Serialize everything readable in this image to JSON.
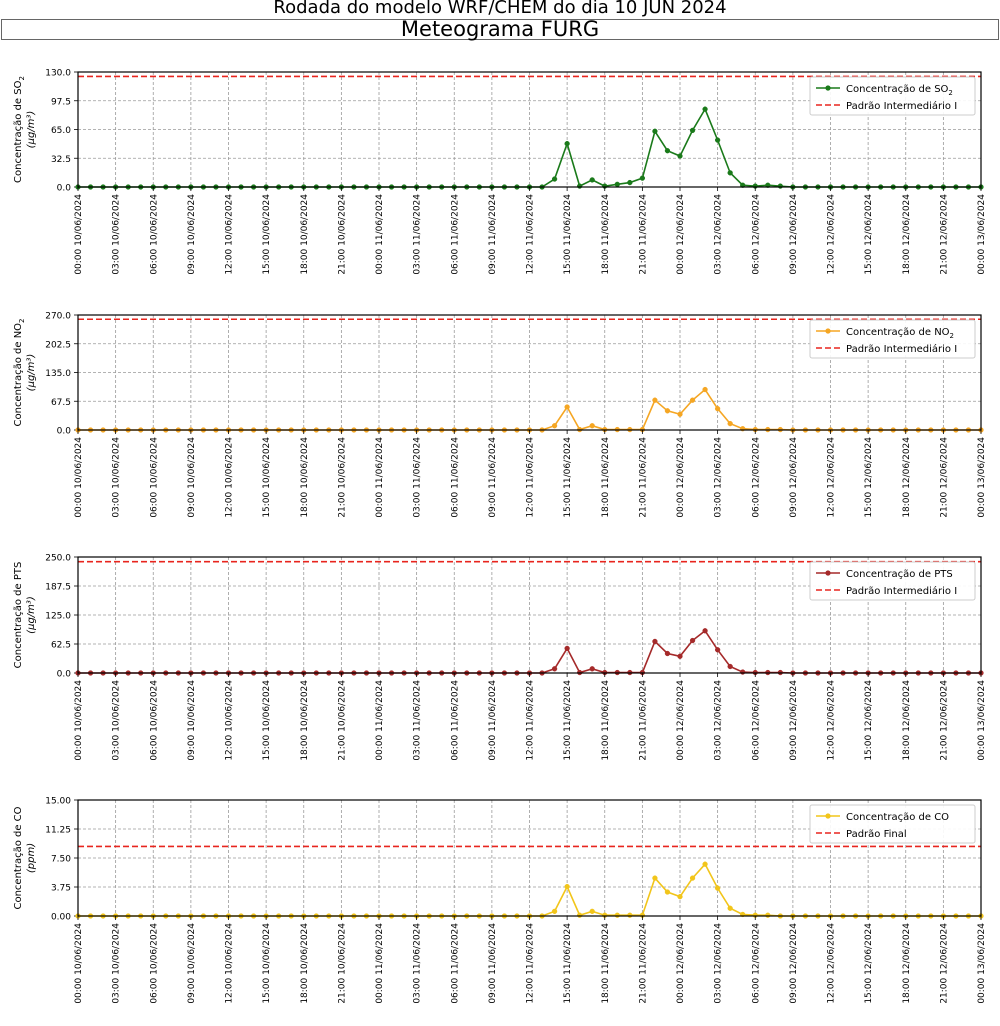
{
  "header": {
    "title": "Rodada do modelo WRF/CHEM do dia 10 JUN 2024",
    "subtitle": "Meteograma FURG"
  },
  "x_tick_labels": [
    "00:00 10/06/2024",
    "03:00 10/06/2024",
    "06:00 10/06/2024",
    "09:00 10/06/2024",
    "12:00 10/06/2024",
    "15:00 10/06/2024",
    "18:00 10/06/2024",
    "21:00 10/06/2024",
    "00:00 11/06/2024",
    "03:00 11/06/2024",
    "06:00 11/06/2024",
    "09:00 11/06/2024",
    "12:00 11/06/2024",
    "15:00 11/06/2024",
    "18:00 11/06/2024",
    "21:00 11/06/2024",
    "00:00 12/06/2024",
    "03:00 12/06/2024",
    "06:00 12/06/2024",
    "09:00 12/06/2024",
    "12:00 12/06/2024",
    "15:00 12/06/2024",
    "18:00 12/06/2024",
    "21:00 12/06/2024",
    "00:00 13/06/2024"
  ],
  "chart_data": [
    {
      "type": "line",
      "color": "#1a7a1a",
      "ylabel_line1": "Concentração de SO",
      "ylabel_sub": "2",
      "ylabel_line2": "(μg/m³)",
      "ylim": [
        0,
        130
      ],
      "yticks": [
        "0.0",
        "32.5",
        "65.0",
        "97.5",
        "130.0"
      ],
      "limit": 125,
      "grid": true,
      "legend_placement": "top-right",
      "series": [
        {
          "label": "Concentração de SO",
          "label_sub": "2",
          "kind": "line-marker",
          "values": [
            0,
            0,
            0,
            0,
            0,
            0,
            0,
            0,
            0,
            0,
            0,
            0,
            0,
            0,
            0,
            0,
            0,
            0,
            0,
            0,
            0,
            0,
            0,
            0,
            0,
            0,
            0,
            0,
            0,
            0,
            0,
            0,
            0,
            0,
            0,
            0,
            0,
            0,
            9,
            49,
            1,
            8,
            1,
            3,
            5,
            10,
            63,
            41,
            35,
            64,
            88,
            53,
            16,
            2,
            1,
            2,
            1,
            0,
            0,
            0,
            0,
            0,
            0,
            0,
            0,
            0,
            0,
            0,
            0,
            0,
            0,
            0,
            0
          ]
        },
        {
          "label": "Padrão Intermediário I",
          "kind": "dashed"
        }
      ]
    },
    {
      "type": "line",
      "color": "#f5a623",
      "ylabel_line1": "Concentração de NO",
      "ylabel_sub": "2",
      "ylabel_line2": "(μg/m³)",
      "ylim": [
        0,
        270
      ],
      "yticks": [
        "0.0",
        "67.5",
        "135.0",
        "202.5",
        "270.0"
      ],
      "limit": 260,
      "grid": true,
      "legend_placement": "top-right",
      "series": [
        {
          "label": "Concentração de NO",
          "label_sub": "2",
          "kind": "line-marker",
          "values": [
            0,
            0,
            0,
            0,
            0,
            0,
            0,
            0,
            0,
            0,
            0,
            0,
            0,
            0,
            0,
            0,
            0,
            0,
            0,
            0,
            0,
            0,
            0,
            0,
            0,
            0,
            0,
            0,
            0,
            0,
            0,
            0,
            0,
            0,
            0,
            0,
            0,
            0,
            10,
            54,
            1,
            10,
            1,
            1,
            1,
            1,
            70,
            45,
            37,
            70,
            95,
            50,
            15,
            3,
            1,
            1,
            1,
            0,
            0,
            0,
            0,
            0,
            0,
            0,
            0,
            0,
            0,
            0,
            0,
            0,
            0,
            0,
            0
          ]
        },
        {
          "label": "Padrão Intermediário I",
          "kind": "dashed"
        }
      ]
    },
    {
      "type": "line",
      "color": "#a52a2a",
      "ylabel_line1": "Concentração de PTS",
      "ylabel_sub": "",
      "ylabel_line2": "(μg/m³)",
      "ylim": [
        0,
        250
      ],
      "yticks": [
        "0.0",
        "62.5",
        "125.0",
        "187.5",
        "250.0"
      ],
      "limit": 240,
      "grid": true,
      "legend_placement": "top-right",
      "series": [
        {
          "label": "Concentração de PTS",
          "label_sub": "",
          "kind": "line-marker",
          "values": [
            0,
            0,
            0,
            0,
            0,
            0,
            0,
            0,
            0,
            0,
            0,
            0,
            0,
            0,
            0,
            0,
            0,
            0,
            0,
            0,
            0,
            0,
            0,
            0,
            0,
            0,
            0,
            0,
            0,
            0,
            0,
            0,
            0,
            0,
            0,
            0,
            0,
            0,
            9,
            53,
            1,
            9,
            1,
            1,
            1,
            1,
            68,
            42,
            36,
            70,
            91,
            50,
            14,
            2,
            1,
            1,
            1,
            0,
            0,
            0,
            0,
            0,
            0,
            0,
            0,
            0,
            0,
            0,
            0,
            0,
            0,
            0,
            0
          ]
        },
        {
          "label": "Padrão Intermediário I",
          "kind": "dashed"
        }
      ]
    },
    {
      "type": "line",
      "color": "#f2c51a",
      "ylabel_line1": "Concentração de CO",
      "ylabel_sub": "",
      "ylabel_line2": "(ppm)",
      "ylim": [
        0,
        15
      ],
      "yticks": [
        "0.00",
        "3.75",
        "7.50",
        "11.25",
        "15.00"
      ],
      "limit": 9,
      "grid": true,
      "legend_placement": "top-right",
      "series": [
        {
          "label": "Concentração de CO",
          "label_sub": "",
          "kind": "line-marker",
          "values": [
            0,
            0,
            0,
            0,
            0,
            0,
            0,
            0,
            0,
            0,
            0,
            0,
            0,
            0,
            0,
            0,
            0,
            0,
            0,
            0,
            0,
            0,
            0,
            0,
            0,
            0,
            0,
            0,
            0,
            0,
            0,
            0,
            0,
            0,
            0,
            0,
            0,
            0,
            0.6,
            3.8,
            0.1,
            0.6,
            0.1,
            0.1,
            0.1,
            0.1,
            4.9,
            3.1,
            2.5,
            4.9,
            6.7,
            3.6,
            1.0,
            0.2,
            0.1,
            0.1,
            0,
            0,
            0,
            0,
            0,
            0,
            0,
            0,
            0,
            0,
            0,
            0,
            0,
            0,
            0,
            0,
            0
          ]
        },
        {
          "label": "Padrão Final",
          "kind": "dashed"
        }
      ]
    }
  ]
}
